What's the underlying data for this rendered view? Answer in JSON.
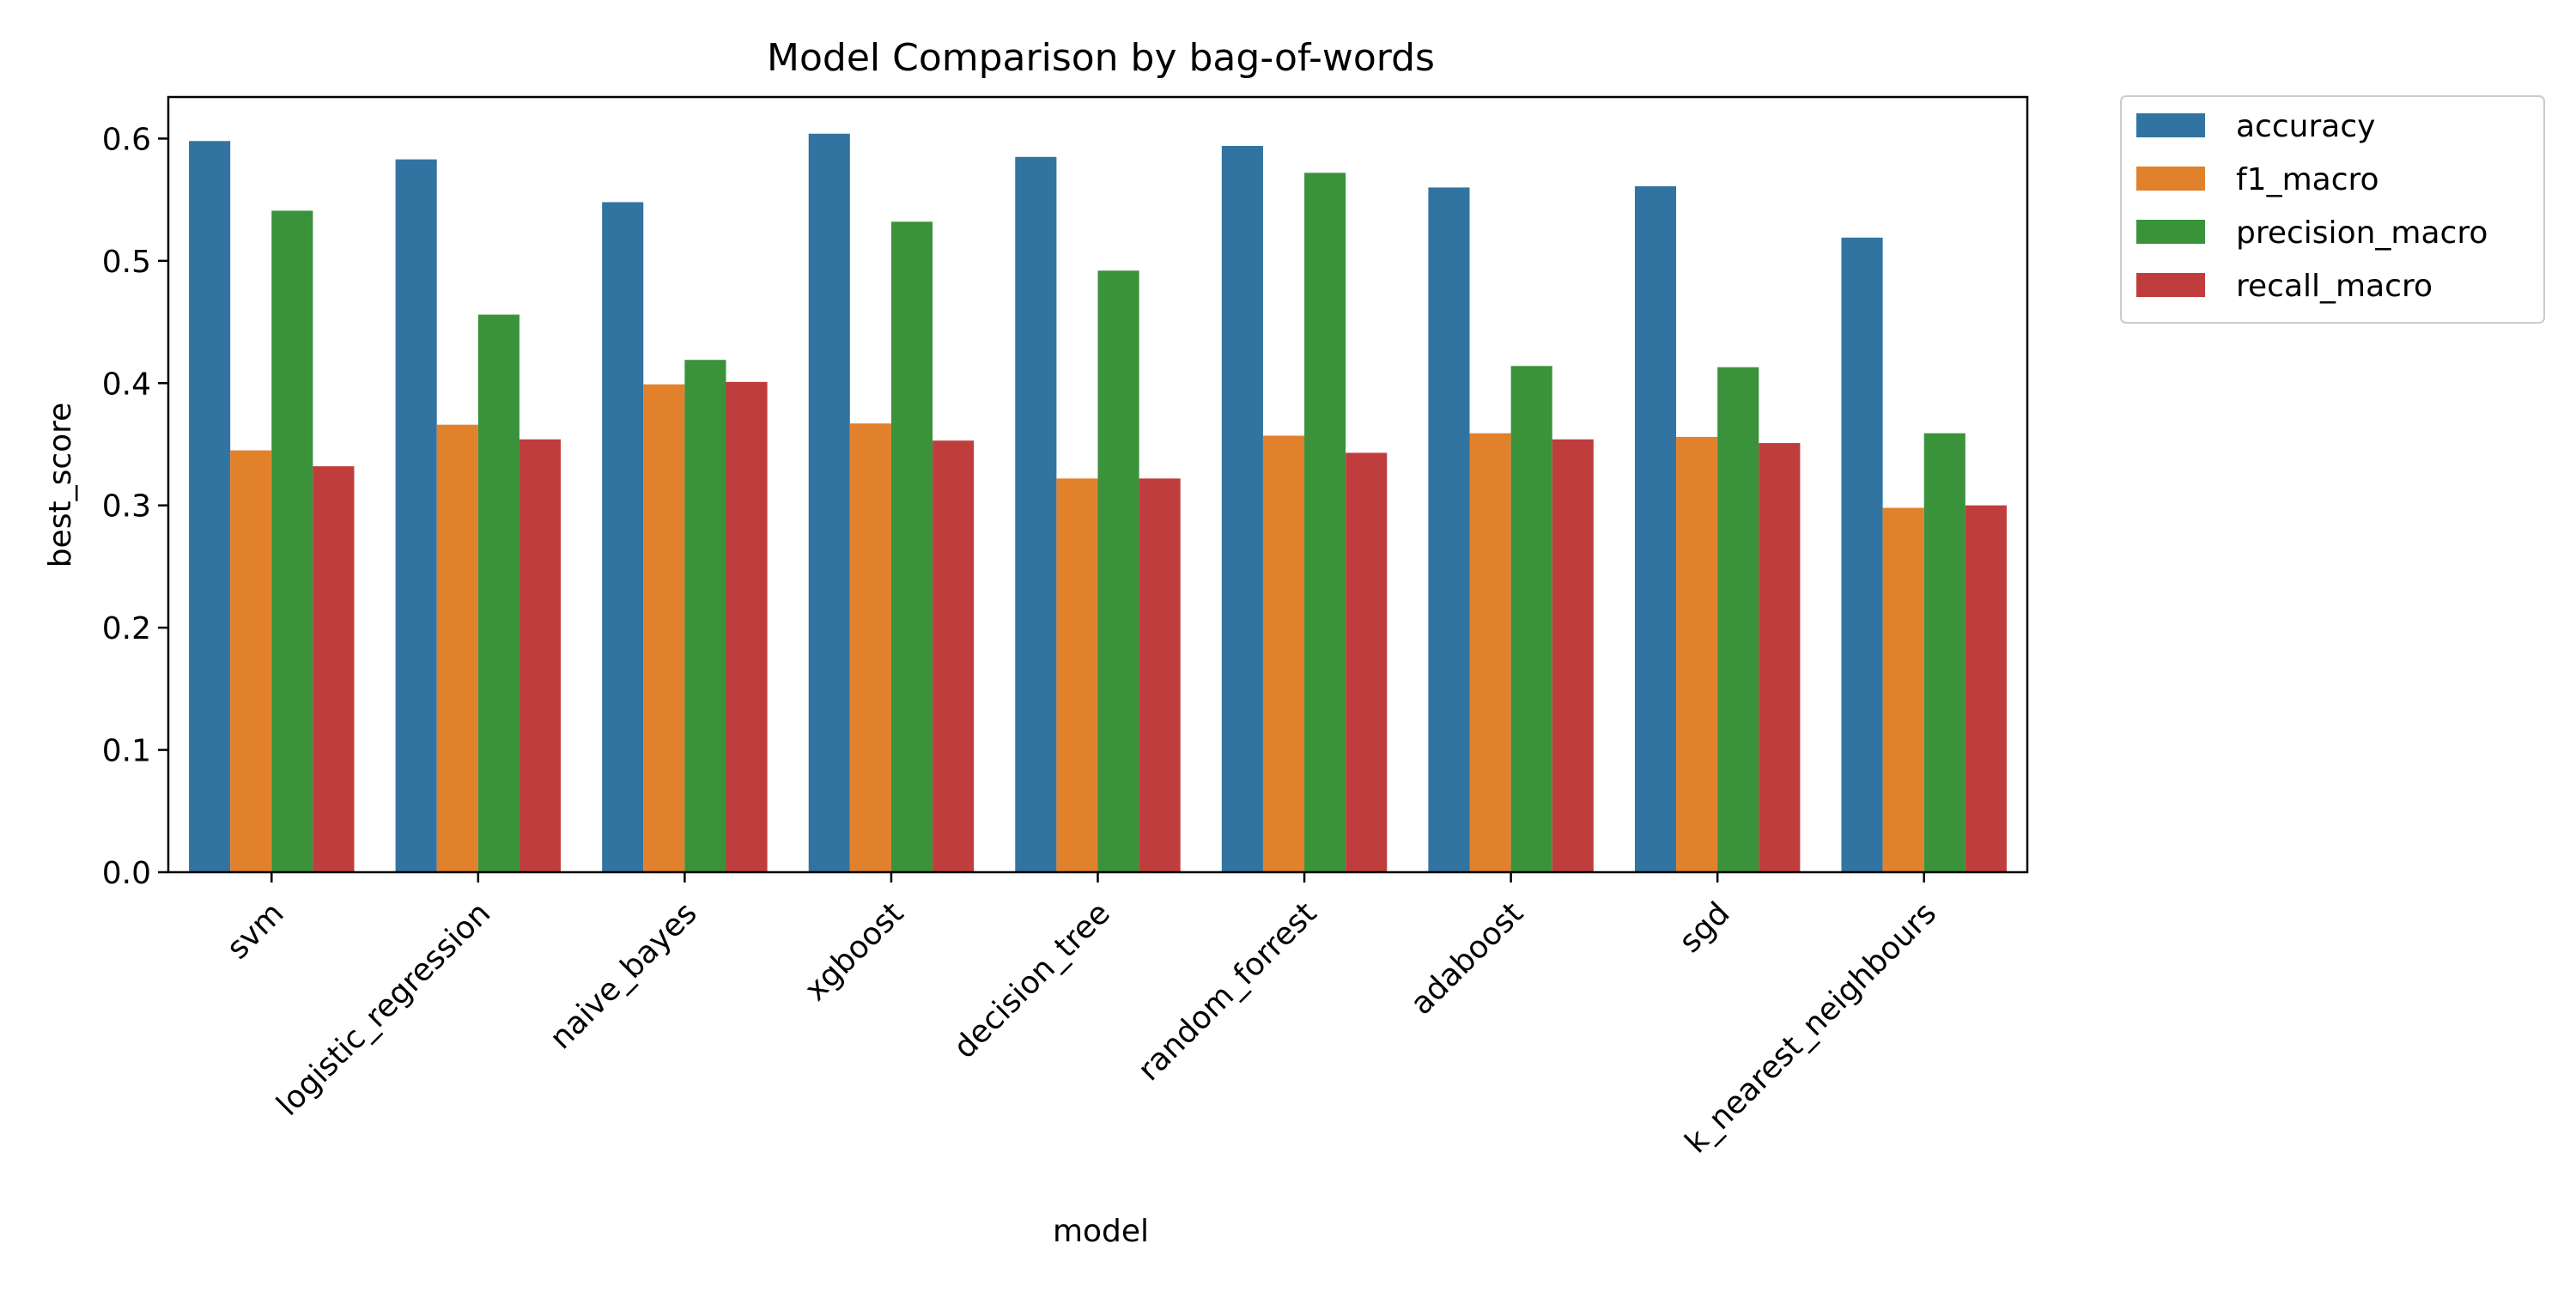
{
  "chart_data": {
    "type": "bar",
    "title": "Model Comparison by bag-of-words",
    "xlabel": "model",
    "ylabel": "best_score",
    "ylim": [
      0,
      0.634
    ],
    "yticks": [
      0.0,
      0.1,
      0.2,
      0.3,
      0.4,
      0.5,
      0.6
    ],
    "ytick_labels": [
      "0.0",
      "0.1",
      "0.2",
      "0.3",
      "0.4",
      "0.5",
      "0.6"
    ],
    "grid": false,
    "legend_position": "outside-top-right",
    "categories": [
      "svm",
      "logistic_regression",
      "naive_bayes",
      "xgboost",
      "decision_tree",
      "random_forrest",
      "adaboost",
      "sgd",
      "k_nearest_neighbours"
    ],
    "series": [
      {
        "name": "accuracy",
        "color": "#3274a1",
        "values": [
          0.598,
          0.583,
          0.548,
          0.604,
          0.585,
          0.594,
          0.56,
          0.561,
          0.519
        ]
      },
      {
        "name": "f1_macro",
        "color": "#e1812c",
        "values": [
          0.345,
          0.366,
          0.399,
          0.367,
          0.322,
          0.357,
          0.359,
          0.356,
          0.298
        ]
      },
      {
        "name": "precision_macro",
        "color": "#3a923a",
        "values": [
          0.541,
          0.456,
          0.419,
          0.532,
          0.492,
          0.572,
          0.414,
          0.413,
          0.359
        ]
      },
      {
        "name": "recall_macro",
        "color": "#c03d3e",
        "values": [
          0.332,
          0.354,
          0.401,
          0.353,
          0.322,
          0.343,
          0.354,
          0.351,
          0.3
        ]
      }
    ]
  }
}
